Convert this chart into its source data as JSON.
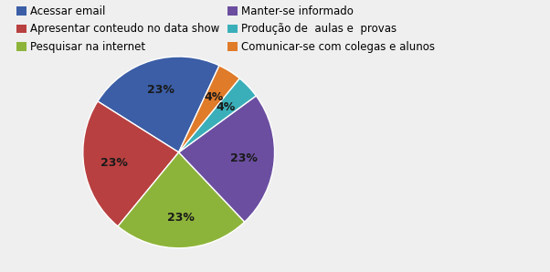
{
  "labels": [
    "Acessar email",
    "Apresentar conteudo no data show",
    "Pesquisar na internet",
    "Manter-se informado",
    "Produção de  aulas e  provas",
    "Comunicar-se com colegas e alunos"
  ],
  "values": [
    23,
    23,
    23,
    23,
    4,
    4
  ],
  "colors": [
    "#3B5EA6",
    "#B94040",
    "#8DB43A",
    "#6B4EA0",
    "#3AAFB9",
    "#E07B2A"
  ],
  "legend_col1": [
    "Acessar email",
    "Pesquisar na internet",
    "Produção de  aulas e  provas"
  ],
  "legend_col2": [
    "Apresentar conteudo no data show",
    "Manter-se informado",
    "Comunicar-se com colegas e alunos"
  ],
  "legend_colors_col1": [
    "#3B5EA6",
    "#8DB43A",
    "#3AAFB9"
  ],
  "legend_colors_col2": [
    "#B94040",
    "#6B4EA0",
    "#E07B2A"
  ],
  "background_color": "#EFEFEF",
  "startangle": 65,
  "fontsize_legend": 8.5,
  "fontsize_autopct": 9,
  "text_color": "#1a1a1a"
}
